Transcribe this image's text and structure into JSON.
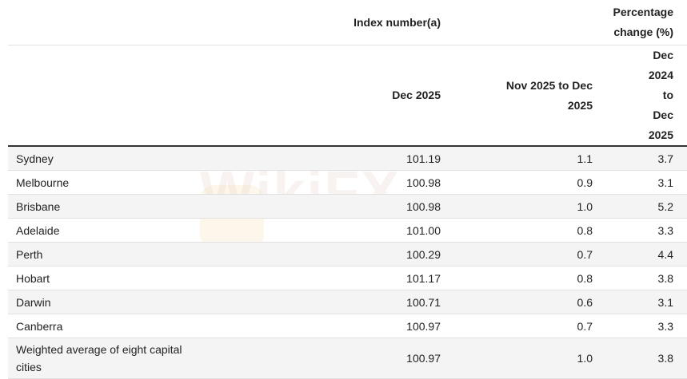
{
  "watermark": "WikiFX",
  "header": {
    "index_group": "Index number(a)",
    "pct_group": "Percentage change (%)",
    "col_index": "Dec 2025",
    "col_monthly": "Nov 2025 to Dec 2025",
    "col_annual": "Dec 2024 to Dec 2025"
  },
  "rows": [
    {
      "city": "Sydney",
      "index": "101.19",
      "monthly": "1.1",
      "annual": "3.7"
    },
    {
      "city": "Melbourne",
      "index": "100.98",
      "monthly": "0.9",
      "annual": "3.1"
    },
    {
      "city": "Brisbane",
      "index": "100.98",
      "monthly": "1.0",
      "annual": "5.2"
    },
    {
      "city": "Adelaide",
      "index": "101.00",
      "monthly": "0.8",
      "annual": "3.3"
    },
    {
      "city": "Perth",
      "index": "100.29",
      "monthly": "0.7",
      "annual": "4.4"
    },
    {
      "city": "Hobart",
      "index": "101.17",
      "monthly": "0.8",
      "annual": "3.8"
    },
    {
      "city": "Darwin",
      "index": "100.71",
      "monthly": "0.6",
      "annual": "3.1"
    },
    {
      "city": "Canberra",
      "index": "100.97",
      "monthly": "0.7",
      "annual": "3.3"
    },
    {
      "city": "Weighted average of eight capital cities",
      "index": "100.97",
      "monthly": "1.0",
      "annual": "3.8"
    }
  ]
}
